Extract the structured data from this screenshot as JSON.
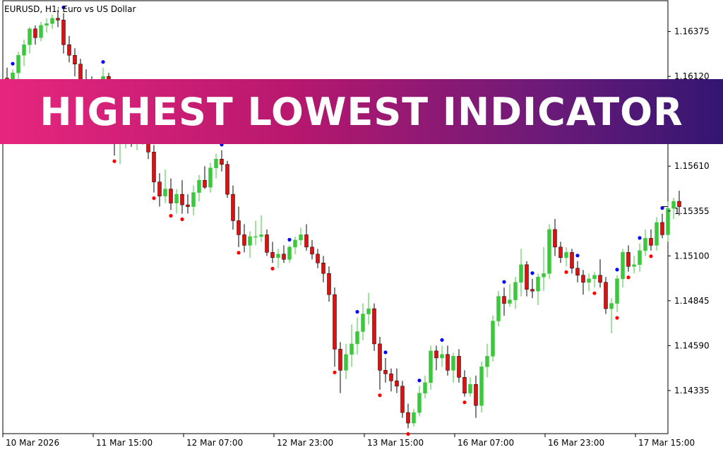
{
  "banner": {
    "text": "HIGHEST LOWEST INDICATOR"
  },
  "chart_data": {
    "type": "candlestick",
    "symbol_header": "EURUSD, H1:  Euro vs US Dollar",
    "ylim": [
      1.1409,
      1.1655
    ],
    "y_ticks": [
      "1.16375",
      "1.16120",
      "1.15865",
      "1.15610",
      "1.15355",
      "1.15100",
      "1.14845",
      "1.14590",
      "1.14335"
    ],
    "x_ticks": [
      "10 Mar 2026",
      "11 Mar 15:00",
      "12 Mar 07:00",
      "12 Mar 23:00",
      "13 Mar 15:00",
      "16 Mar 07:00",
      "16 Mar 23:00",
      "17 Mar 15:00"
    ],
    "x_tick_bar_index": [
      0,
      16,
      32,
      48,
      64,
      80,
      96,
      112
    ],
    "current_price": 1.1538,
    "colors": {
      "bull": "#3cc83c",
      "bear": "#e01010",
      "wick_bull": "#3cc83c",
      "wick_bear": "#000000",
      "high_marker": "#0000ff",
      "low_marker": "#ff0000"
    },
    "candles": [
      [
        1.1611,
        1.1617,
        1.1601,
        1.1606
      ],
      [
        1.1606,
        1.1616,
        1.1601,
        1.1614
      ],
      [
        1.1614,
        1.1626,
        1.161,
        1.1624
      ],
      [
        1.1624,
        1.1633,
        1.1618,
        1.163
      ],
      [
        1.163,
        1.164,
        1.1625,
        1.1639
      ],
      [
        1.1639,
        1.1641,
        1.163,
        1.1634
      ],
      [
        1.1634,
        1.1643,
        1.1632,
        1.1641
      ],
      [
        1.1641,
        1.1645,
        1.1637,
        1.1642
      ],
      [
        1.1642,
        1.1647,
        1.1639,
        1.1645
      ],
      [
        1.1645,
        1.165,
        1.164,
        1.1644
      ],
      [
        1.1644,
        1.1648,
        1.1625,
        1.163
      ],
      [
        1.163,
        1.1635,
        1.162,
        1.1624
      ],
      [
        1.1624,
        1.1628,
        1.1612,
        1.1619
      ],
      [
        1.1619,
        1.1622,
        1.1605,
        1.161
      ],
      [
        1.161,
        1.1616,
        1.16,
        1.1607
      ],
      [
        1.1607,
        1.1612,
        1.1598,
        1.1602
      ],
      [
        1.1602,
        1.161,
        1.1599,
        1.1606
      ],
      [
        1.1606,
        1.1617,
        1.1603,
        1.1612
      ],
      [
        1.1612,
        1.1614,
        1.1577,
        1.158
      ],
      [
        1.158,
        1.1588,
        1.1567,
        1.1575
      ],
      [
        1.1575,
        1.1583,
        1.1562,
        1.1578
      ],
      [
        1.1578,
        1.159,
        1.1571,
        1.1585
      ],
      [
        1.1585,
        1.1594,
        1.1572,
        1.1577
      ],
      [
        1.1577,
        1.1582,
        1.157,
        1.1578
      ],
      [
        1.1578,
        1.159,
        1.1573,
        1.1586
      ],
      [
        1.1586,
        1.1592,
        1.1565,
        1.1569
      ],
      [
        1.1569,
        1.1573,
        1.1546,
        1.1552
      ],
      [
        1.1552,
        1.1557,
        1.1538,
        1.1544
      ],
      [
        1.1544,
        1.1559,
        1.154,
        1.1548
      ],
      [
        1.1548,
        1.1554,
        1.1536,
        1.154
      ],
      [
        1.154,
        1.1548,
        1.1534,
        1.1545
      ],
      [
        1.1545,
        1.1553,
        1.1534,
        1.1539
      ],
      [
        1.1539,
        1.1545,
        1.1534,
        1.1538
      ],
      [
        1.1538,
        1.155,
        1.1533,
        1.1546
      ],
      [
        1.1546,
        1.1556,
        1.1541,
        1.1553
      ],
      [
        1.1553,
        1.1561,
        1.1548,
        1.1549
      ],
      [
        1.1549,
        1.1563,
        1.1546,
        1.156
      ],
      [
        1.156,
        1.1568,
        1.1554,
        1.1565
      ],
      [
        1.1565,
        1.157,
        1.1558,
        1.1562
      ],
      [
        1.1562,
        1.1564,
        1.1543,
        1.1545
      ],
      [
        1.1545,
        1.155,
        1.1525,
        1.153
      ],
      [
        1.153,
        1.1538,
        1.1515,
        1.1522
      ],
      [
        1.1522,
        1.1528,
        1.1512,
        1.1516
      ],
      [
        1.1516,
        1.1524,
        1.1509,
        1.1521
      ],
      [
        1.1521,
        1.153,
        1.1516,
        1.1521
      ],
      [
        1.1521,
        1.1533,
        1.1518,
        1.1522
      ],
      [
        1.1522,
        1.1525,
        1.151,
        1.1512
      ],
      [
        1.1512,
        1.1518,
        1.1506,
        1.1509
      ],
      [
        1.1509,
        1.1514,
        1.1503,
        1.1511
      ],
      [
        1.1511,
        1.1516,
        1.1506,
        1.1508
      ],
      [
        1.1508,
        1.1516,
        1.1506,
        1.1515
      ],
      [
        1.1515,
        1.1521,
        1.1511,
        1.1519
      ],
      [
        1.1519,
        1.1526,
        1.1516,
        1.1522
      ],
      [
        1.1522,
        1.1528,
        1.1513,
        1.1515
      ],
      [
        1.1515,
        1.1519,
        1.1508,
        1.1511
      ],
      [
        1.1511,
        1.1514,
        1.1503,
        1.1506
      ],
      [
        1.1506,
        1.151,
        1.1495,
        1.15
      ],
      [
        1.15,
        1.1504,
        1.1484,
        1.1488
      ],
      [
        1.1488,
        1.1492,
        1.1447,
        1.1457
      ],
      [
        1.1457,
        1.1461,
        1.1432,
        1.1445
      ],
      [
        1.1445,
        1.146,
        1.144,
        1.1454
      ],
      [
        1.1454,
        1.1471,
        1.1447,
        1.146
      ],
      [
        1.146,
        1.1475,
        1.1454,
        1.1467
      ],
      [
        1.1467,
        1.1483,
        1.1462,
        1.1477
      ],
      [
        1.1477,
        1.1489,
        1.1471,
        1.148
      ],
      [
        1.148,
        1.1483,
        1.1456,
        1.146
      ],
      [
        1.146,
        1.1464,
        1.1434,
        1.1445
      ],
      [
        1.1445,
        1.1452,
        1.1438,
        1.1443
      ],
      [
        1.1443,
        1.1446,
        1.1433,
        1.1439
      ],
      [
        1.1439,
        1.1446,
        1.1432,
        1.1436
      ],
      [
        1.1436,
        1.1439,
        1.1418,
        1.1421
      ],
      [
        1.1421,
        1.1426,
        1.1412,
        1.1415
      ],
      [
        1.1415,
        1.1423,
        1.1413,
        1.1421
      ],
      [
        1.1421,
        1.1436,
        1.1419,
        1.1432
      ],
      [
        1.1432,
        1.1442,
        1.1429,
        1.1438
      ],
      [
        1.1438,
        1.1459,
        1.1434,
        1.1456
      ],
      [
        1.1456,
        1.1459,
        1.1445,
        1.1452
      ],
      [
        1.1452,
        1.1459,
        1.1447,
        1.1454
      ],
      [
        1.1454,
        1.1459,
        1.1442,
        1.1445
      ],
      [
        1.1445,
        1.1455,
        1.1438,
        1.1453
      ],
      [
        1.1453,
        1.1457,
        1.1438,
        1.1441
      ],
      [
        1.1441,
        1.1445,
        1.143,
        1.1432
      ],
      [
        1.1432,
        1.1441,
        1.143,
        1.1437
      ],
      [
        1.1437,
        1.1442,
        1.1418,
        1.1425
      ],
      [
        1.1425,
        1.145,
        1.1421,
        1.1447
      ],
      [
        1.1447,
        1.146,
        1.1441,
        1.1453
      ],
      [
        1.1453,
        1.1476,
        1.145,
        1.1473
      ],
      [
        1.1473,
        1.149,
        1.147,
        1.1487
      ],
      [
        1.1487,
        1.1492,
        1.1476,
        1.1483
      ],
      [
        1.1483,
        1.1494,
        1.1481,
        1.1485
      ],
      [
        1.1485,
        1.1498,
        1.148,
        1.1495
      ],
      [
        1.1495,
        1.1514,
        1.1487,
        1.1505
      ],
      [
        1.1505,
        1.1507,
        1.1487,
        1.1491
      ],
      [
        1.1491,
        1.1497,
        1.1486,
        1.149
      ],
      [
        1.149,
        1.15,
        1.1482,
        1.1498
      ],
      [
        1.1498,
        1.1515,
        1.149,
        1.15
      ],
      [
        1.15,
        1.1528,
        1.1497,
        1.1525
      ],
      [
        1.1525,
        1.1531,
        1.151,
        1.1515
      ],
      [
        1.1515,
        1.1518,
        1.1506,
        1.1509
      ],
      [
        1.1509,
        1.1515,
        1.1504,
        1.1512
      ],
      [
        1.1512,
        1.1514,
        1.15,
        1.1503
      ],
      [
        1.1503,
        1.1507,
        1.1495,
        1.1499
      ],
      [
        1.1499,
        1.1502,
        1.1488,
        1.1495
      ],
      [
        1.1495,
        1.15,
        1.149,
        1.1497
      ],
      [
        1.1497,
        1.1501,
        1.1492,
        1.1499
      ],
      [
        1.1499,
        1.1508,
        1.1492,
        1.1495
      ],
      [
        1.1495,
        1.1498,
        1.1477,
        1.148
      ],
      [
        1.148,
        1.1486,
        1.1466,
        1.1483
      ],
      [
        1.1483,
        1.1499,
        1.1478,
        1.1497
      ],
      [
        1.1497,
        1.1514,
        1.1492,
        1.1512
      ],
      [
        1.1512,
        1.1516,
        1.1501,
        1.1504
      ],
      [
        1.1504,
        1.151,
        1.15,
        1.1505
      ],
      [
        1.1505,
        1.1517,
        1.1501,
        1.1513
      ],
      [
        1.1513,
        1.1525,
        1.151,
        1.152
      ],
      [
        1.152,
        1.1525,
        1.1513,
        1.1516
      ],
      [
        1.1516,
        1.1532,
        1.1513,
        1.1529
      ],
      [
        1.1529,
        1.1534,
        1.152,
        1.1522
      ],
      [
        1.1522,
        1.1541,
        1.1518,
        1.1537
      ],
      [
        1.1537,
        1.1543,
        1.1531,
        1.1541
      ],
      [
        1.1541,
        1.1547,
        1.1533,
        1.1538
      ]
    ],
    "highs": [
      1,
      10,
      17,
      38,
      50,
      62,
      67,
      73,
      77,
      88,
      93,
      101,
      108,
      112,
      116
    ],
    "lows": [
      19,
      26,
      29,
      31,
      41,
      47,
      58,
      66,
      71,
      81,
      99,
      104,
      108,
      110,
      114
    ]
  }
}
